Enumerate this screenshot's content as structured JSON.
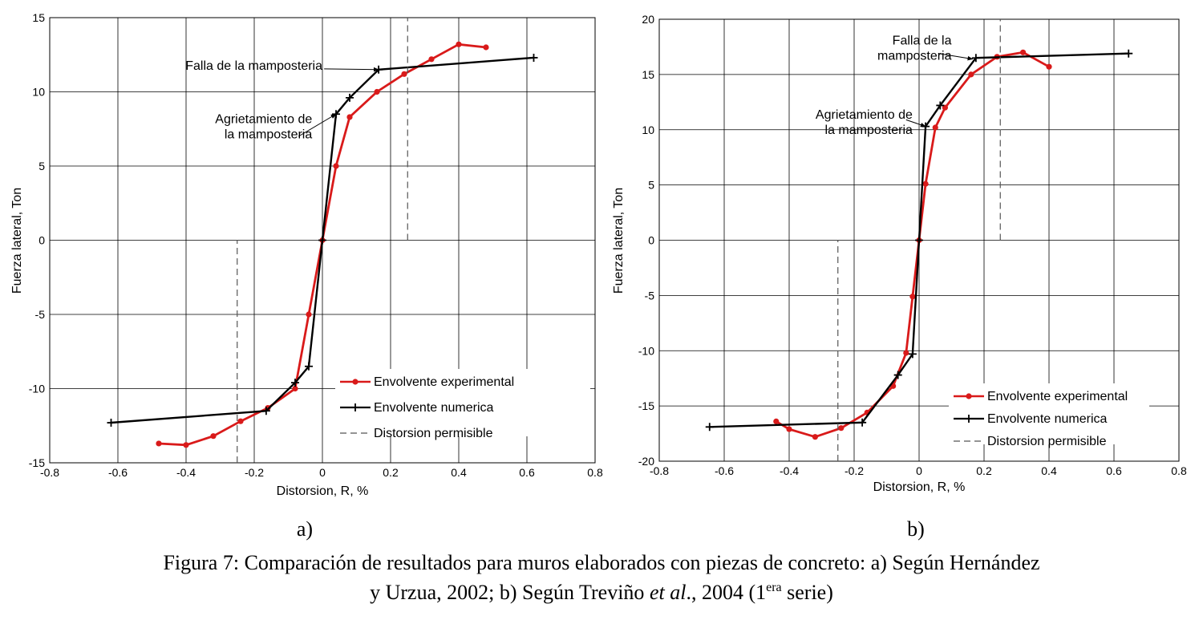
{
  "caption": {
    "line1": "Figura 7: Comparación de resultados para muros elaborados con piezas de concreto: a) Según Hernández",
    "line2_a": "y Urzua, 2002; b) Según Treviño ",
    "line2_italic": "et al",
    "line2_b": "., 2004 (1",
    "line2_sup": "era",
    "line2_c": " serie)"
  },
  "colors": {
    "experimental": "#d91a1a",
    "numerica": "#000000",
    "permisible": "#555555",
    "grid": "#000000"
  },
  "chart_data": [
    {
      "id": "a",
      "type": "line",
      "sublabel": "a)",
      "xlabel": "Distorsion, R, %",
      "ylabel": "Fuerza lateral, Ton",
      "xlim": [
        -0.8,
        0.8
      ],
      "ylim": [
        -15,
        15
      ],
      "xticks": [
        -0.8,
        -0.6,
        -0.4,
        -0.2,
        0,
        0.2,
        0.4,
        0.6,
        0.8
      ],
      "xtick_labels": [
        "-0.8",
        "-0.6",
        "-0.4",
        "-0.2",
        "0",
        "0.2",
        "0.4",
        "0.6",
        "0.8"
      ],
      "yticks": [
        -15,
        -10,
        -5,
        0,
        5,
        10,
        15
      ],
      "ytick_labels": [
        "-15",
        "-10",
        "-5",
        "0",
        "5",
        "10",
        "15"
      ],
      "grid": true,
      "legend_position": "bottom-right",
      "series": [
        {
          "name": "Envolvente experimental",
          "marker": "dot",
          "x": [
            -0.48,
            -0.4,
            -0.32,
            -0.24,
            -0.16,
            -0.08,
            -0.04,
            0,
            0.04,
            0.08,
            0.16,
            0.24,
            0.32,
            0.4,
            0.48
          ],
          "y": [
            -13.7,
            -13.8,
            -13.2,
            -12.2,
            -11.3,
            -10.0,
            -5.0,
            0,
            5.0,
            8.3,
            10.0,
            11.2,
            12.2,
            13.2,
            13.0
          ]
        },
        {
          "name": "Envolvente numerica",
          "marker": "plus",
          "x": [
            -0.62,
            -0.165,
            -0.08,
            -0.04,
            0,
            0.04,
            0.08,
            0.165,
            0.62
          ],
          "y": [
            -12.3,
            -11.5,
            -9.6,
            -8.5,
            0,
            8.5,
            9.6,
            11.5,
            12.3
          ]
        },
        {
          "name": "Distorsion permisible",
          "dashed": true,
          "segments": [
            {
              "x": [
                0.25,
                0.25
              ],
              "y": [
                0,
                15
              ]
            },
            {
              "x": [
                -0.25,
                -0.25
              ],
              "y": [
                -15,
                0
              ]
            }
          ]
        }
      ],
      "annotations": [
        {
          "lines": [
            "Falla de la mamposteria"
          ],
          "anchor": "end",
          "point": [
            0.165,
            11.5
          ],
          "text_at": [
            0.0,
            11.5
          ],
          "arrow_from": [
            0.005,
            11.55
          ]
        },
        {
          "lines": [
            "Agrietamiento de",
            "la mamposteria"
          ],
          "anchor": "end",
          "point": [
            0.04,
            8.5
          ],
          "text_at": [
            -0.03,
            7.9
          ],
          "arrow_from": [
            -0.07,
            7.0
          ]
        }
      ]
    },
    {
      "id": "b",
      "type": "line",
      "sublabel": "b)",
      "xlabel": "Distorsion, R, %",
      "ylabel": "Fuerza lateral, Ton",
      "xlim": [
        -0.8,
        0.8
      ],
      "ylim": [
        -20,
        20
      ],
      "xticks": [
        -0.8,
        -0.6,
        -0.4,
        -0.2,
        0,
        0.2,
        0.4,
        0.6,
        0.8
      ],
      "xtick_labels": [
        "-0.8",
        "-0.6",
        "-0.4",
        "-0.2",
        "0",
        "0.2",
        "0.4",
        "0.6",
        "0.8"
      ],
      "yticks": [
        -20,
        -15,
        -10,
        -5,
        0,
        5,
        10,
        15,
        20
      ],
      "ytick_labels": [
        "-20",
        "-15",
        "-10",
        "-5",
        "0",
        "5",
        "10",
        "15",
        "20"
      ],
      "grid": true,
      "legend_position": "bottom-right",
      "series": [
        {
          "name": "Envolvente experimental",
          "marker": "dot",
          "x": [
            -0.44,
            -0.4,
            -0.32,
            -0.24,
            -0.16,
            -0.08,
            -0.04,
            -0.02,
            0,
            0.02,
            0.05,
            0.08,
            0.16,
            0.24,
            0.32,
            0.4
          ],
          "y": [
            -16.4,
            -17.1,
            -17.8,
            -17.0,
            -15.6,
            -13.2,
            -10.2,
            -5.1,
            0,
            5.1,
            10.2,
            12.0,
            15.0,
            16.6,
            17.0,
            15.7
          ]
        },
        {
          "name": "Envolvente numerica",
          "marker": "plus",
          "x": [
            -0.645,
            -0.175,
            -0.065,
            -0.02,
            0,
            0.02,
            0.065,
            0.175,
            0.645
          ],
          "y": [
            -16.9,
            -16.5,
            -12.2,
            -10.3,
            0,
            10.3,
            12.2,
            16.5,
            16.9
          ]
        },
        {
          "name": "Distorsion permisible",
          "dashed": true,
          "segments": [
            {
              "x": [
                0.25,
                0.25
              ],
              "y": [
                0,
                20
              ]
            },
            {
              "x": [
                -0.25,
                -0.25
              ],
              "y": [
                -20,
                0
              ]
            }
          ]
        }
      ],
      "annotations": [
        {
          "lines": [
            "Falla de la",
            "mamposteria"
          ],
          "anchor": "end",
          "point": [
            0.165,
            16.4
          ],
          "text_at": [
            0.1,
            17.7
          ],
          "arrow_from": [
            0.06,
            16.9
          ]
        },
        {
          "lines": [
            "Agrietamiento de",
            "la mamposteria"
          ],
          "anchor": "end",
          "point": [
            0.02,
            10.3
          ],
          "text_at": [
            -0.02,
            11.0
          ],
          "arrow_from": [
            -0.04,
            10.9
          ]
        }
      ]
    }
  ]
}
